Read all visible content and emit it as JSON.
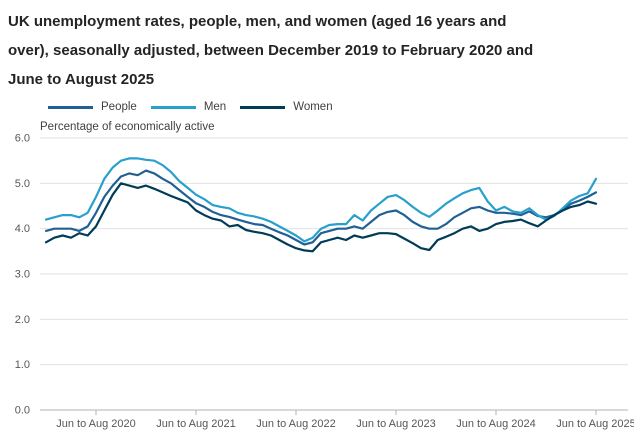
{
  "chart_data": {
    "type": "line",
    "title": "UK unemployment rates, people, men, and women (aged 16 years and over), seasonally adjusted, between December 2019 to February 2020 and June to August 2025",
    "title_lines": [
      "UK unemployment rates, people, men, and women (aged 16 years and",
      "over), seasonally adjusted, between December 2019 to February 2020 and",
      "June to August 2025"
    ],
    "axis_note": "Percentage of economically active",
    "ylim": [
      0,
      6
    ],
    "yticks": [
      "0.0",
      "1.0",
      "2.0",
      "3.0",
      "4.0",
      "5.0",
      "6.0"
    ],
    "grid": "horizontal",
    "legend_position": "top",
    "x_count": 67,
    "x_unit": "monthly rolling 3-month periods",
    "x_ticks": [
      {
        "label": "Jun to Aug 2020",
        "index": 6
      },
      {
        "label": "Jun to Aug 2021",
        "index": 18
      },
      {
        "label": "Jun to Aug 2022",
        "index": 30
      },
      {
        "label": "Jun to Aug 2023",
        "index": 42
      },
      {
        "label": "Jun to Aug 2024",
        "index": 54
      },
      {
        "label": "Jun to Aug 2025",
        "index": 66
      }
    ],
    "series": [
      {
        "name": "People",
        "color": "#206095",
        "values": [
          3.95,
          4.0,
          4.0,
          4.0,
          3.95,
          4.05,
          4.35,
          4.7,
          4.95,
          5.15,
          5.22,
          5.18,
          5.28,
          5.22,
          5.1,
          5.0,
          4.85,
          4.7,
          4.56,
          4.48,
          4.37,
          4.3,
          4.26,
          4.2,
          4.15,
          4.1,
          4.08,
          4.0,
          3.92,
          3.85,
          3.75,
          3.65,
          3.7,
          3.9,
          3.95,
          4.0,
          4.0,
          4.05,
          4.0,
          4.15,
          4.3,
          4.37,
          4.4,
          4.3,
          4.15,
          4.05,
          4.0,
          4.0,
          4.1,
          4.25,
          4.35,
          4.45,
          4.48,
          4.4,
          4.35,
          4.35,
          4.33,
          4.3,
          4.38,
          4.28,
          4.25,
          4.3,
          4.42,
          4.55,
          4.62,
          4.7,
          4.8
        ]
      },
      {
        "name": "Men",
        "color": "#27A0CC",
        "values": [
          4.2,
          4.25,
          4.3,
          4.3,
          4.25,
          4.35,
          4.7,
          5.1,
          5.35,
          5.5,
          5.55,
          5.55,
          5.52,
          5.5,
          5.4,
          5.25,
          5.05,
          4.9,
          4.75,
          4.65,
          4.52,
          4.48,
          4.45,
          4.35,
          4.3,
          4.27,
          4.22,
          4.15,
          4.05,
          3.95,
          3.85,
          3.72,
          3.8,
          4.0,
          4.08,
          4.1,
          4.1,
          4.3,
          4.18,
          4.4,
          4.55,
          4.7,
          4.74,
          4.63,
          4.48,
          4.35,
          4.26,
          4.4,
          4.55,
          4.67,
          4.78,
          4.85,
          4.9,
          4.6,
          4.4,
          4.48,
          4.38,
          4.35,
          4.45,
          4.3,
          4.2,
          4.28,
          4.45,
          4.62,
          4.72,
          4.78,
          5.1
        ]
      },
      {
        "name": "Women",
        "color": "#003C57",
        "values": [
          3.7,
          3.8,
          3.85,
          3.8,
          3.9,
          3.85,
          4.05,
          4.4,
          4.75,
          5.0,
          4.95,
          4.9,
          4.95,
          4.88,
          4.8,
          4.72,
          4.65,
          4.58,
          4.4,
          4.3,
          4.22,
          4.18,
          4.05,
          4.08,
          3.97,
          3.93,
          3.9,
          3.85,
          3.75,
          3.65,
          3.57,
          3.52,
          3.5,
          3.7,
          3.75,
          3.8,
          3.75,
          3.85,
          3.8,
          3.85,
          3.9,
          3.9,
          3.88,
          3.78,
          3.68,
          3.57,
          3.53,
          3.75,
          3.82,
          3.9,
          4.0,
          4.05,
          3.95,
          4.0,
          4.1,
          4.15,
          4.17,
          4.2,
          4.12,
          4.05,
          4.18,
          4.3,
          4.4,
          4.48,
          4.52,
          4.6,
          4.55
        ]
      }
    ],
    "style": {
      "gridline_color": "#e2e2e2",
      "baseline_color": "#b1b4b6",
      "axis_text_color": "#56575a"
    }
  }
}
